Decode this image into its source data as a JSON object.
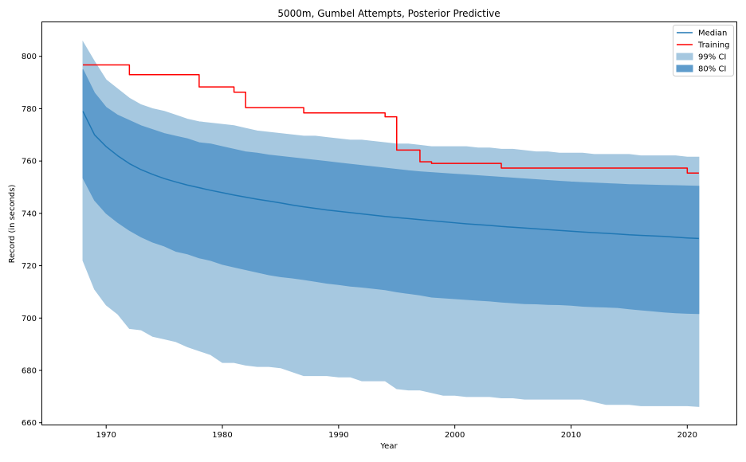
{
  "chart_data": {
    "type": "area",
    "title": "5000m, Gumbel Attempts, Posterior Predictive",
    "xlabel": "Year",
    "ylabel": "Record (in seconds)",
    "xlim": [
      1964.5,
      2024.3
    ],
    "ylim": [
      659,
      813
    ],
    "xticks": [
      1970,
      1980,
      1990,
      2000,
      2010,
      2020
    ],
    "yticks": [
      660,
      680,
      700,
      720,
      740,
      760,
      780,
      800
    ],
    "grid": false,
    "legend_position": "top-right",
    "legend": [
      {
        "label": "Median",
        "kind": "line",
        "color": "#1f77b4"
      },
      {
        "label": "Training",
        "kind": "line",
        "color": "#ff0000"
      },
      {
        "label": "99% CI",
        "kind": "patch",
        "color": "#a6c8e0"
      },
      {
        "label": "80% CI",
        "kind": "patch",
        "color": "#5f9ccc"
      }
    ],
    "x": [
      1968,
      1969,
      1970,
      1971,
      1972,
      1973,
      1974,
      1975,
      1976,
      1977,
      1978,
      1979,
      1980,
      1981,
      1982,
      1983,
      1984,
      1985,
      1986,
      1987,
      1988,
      1989,
      1990,
      1991,
      1992,
      1993,
      1994,
      1995,
      1996,
      1997,
      1998,
      1999,
      2000,
      2001,
      2002,
      2003,
      2004,
      2005,
      2006,
      2007,
      2008,
      2009,
      2010,
      2011,
      2012,
      2013,
      2014,
      2015,
      2016,
      2017,
      2018,
      2019,
      2020,
      2021
    ],
    "series": [
      {
        "name": "Median",
        "color": "#1f77b4",
        "values": [
          779,
          770,
          765.5,
          762,
          759,
          756.7,
          754.9,
          753.3,
          752,
          750.8,
          749.8,
          748.8,
          747.9,
          747,
          746.2,
          745.4,
          744.7,
          744,
          743.2,
          742.5,
          741.9,
          741.3,
          740.8,
          740.3,
          739.8,
          739.3,
          738.8,
          738.4,
          738,
          737.6,
          737.2,
          736.8,
          736.4,
          736,
          735.7,
          735.4,
          735,
          734.7,
          734.4,
          734.1,
          733.8,
          733.5,
          733.2,
          732.9,
          732.6,
          732.4,
          732.1,
          731.8,
          731.6,
          731.4,
          731.2,
          730.9,
          730.6,
          730.4
        ]
      },
      {
        "name": "Training",
        "color": "#ff0000",
        "step": "post",
        "values": [
          796.7,
          796.7,
          796.7,
          796.7,
          793,
          793,
          793,
          793,
          793,
          793,
          788.3,
          788.3,
          788.3,
          786.3,
          780.4,
          780.4,
          780.4,
          780.4,
          780.4,
          778.4,
          778.4,
          778.4,
          778.4,
          778.4,
          778.4,
          778.4,
          776.9,
          764.2,
          764.2,
          759.7,
          759.1,
          759.1,
          759.1,
          759.1,
          759.1,
          759.1,
          757.3,
          757.3,
          757.3,
          757.3,
          757.3,
          757.3,
          757.3,
          757.3,
          757.3,
          757.3,
          757.3,
          757.3,
          757.3,
          757.3,
          757.3,
          757.3,
          755.4,
          755.4
        ]
      }
    ],
    "bands": [
      {
        "name": "99% CI",
        "color": "#a6c8e0",
        "lower": [
          722,
          711,
          705,
          701.5,
          696,
          695.5,
          693,
          692,
          691,
          689,
          687.5,
          686,
          683,
          683,
          682,
          681.5,
          681.5,
          681,
          679.5,
          678,
          678,
          678,
          677.5,
          677.5,
          676,
          676,
          676,
          673,
          672.5,
          672.5,
          671.5,
          670.5,
          670.5,
          670,
          670,
          670,
          669.5,
          669.5,
          669,
          669,
          669,
          669,
          669,
          669,
          668,
          667,
          667,
          667,
          666.5,
          666.5,
          666.5,
          666.5,
          666.5,
          666.2
        ],
        "upper": [
          805.5,
          798,
          791,
          787.5,
          784,
          781.5,
          780,
          779,
          777.5,
          776,
          775,
          774.5,
          774,
          773.5,
          772.5,
          771.5,
          771,
          770.5,
          770,
          769.5,
          769.5,
          769,
          768.5,
          768,
          768,
          767.5,
          767,
          766.5,
          766.5,
          766,
          765.5,
          765.5,
          765.5,
          765.5,
          765,
          765,
          764.5,
          764.5,
          764,
          763.5,
          763.5,
          763,
          763,
          763,
          762.5,
          762.5,
          762.5,
          762.5,
          762,
          762,
          762,
          762,
          761.5,
          761.5
        ]
      },
      {
        "name": "80% CI",
        "color": "#5f9ccc",
        "lower": [
          753.5,
          745,
          740,
          736.5,
          733.5,
          731,
          729,
          727.5,
          725.5,
          724.5,
          723,
          722,
          720.5,
          719.5,
          718.5,
          717.5,
          716.5,
          715.8,
          715.3,
          714.7,
          714,
          713.3,
          712.8,
          712.2,
          711.8,
          711.3,
          710.8,
          710,
          709.4,
          708.8,
          708,
          707.7,
          707.4,
          707.1,
          706.8,
          706.5,
          706.1,
          705.8,
          705.5,
          705.4,
          705.2,
          705.1,
          704.9,
          704.5,
          704.3,
          704.2,
          704,
          703.5,
          703.1,
          702.7,
          702.3,
          702,
          701.8,
          701.7
        ],
        "upper": [
          795,
          786,
          780.5,
          777.5,
          775.5,
          773.5,
          772,
          770.5,
          769.5,
          768.5,
          767,
          766.5,
          765.5,
          764.5,
          763.5,
          763,
          762.3,
          761.8,
          761.3,
          760.8,
          760.3,
          759.8,
          759.3,
          758.8,
          758.3,
          757.8,
          757.3,
          756.8,
          756.3,
          755.9,
          755.6,
          755.3,
          755,
          754.7,
          754.4,
          754.1,
          753.8,
          753.5,
          753.2,
          752.9,
          752.6,
          752.3,
          752,
          751.8,
          751.6,
          751.4,
          751.2,
          751,
          750.9,
          750.8,
          750.7,
          750.6,
          750.5,
          750.4
        ]
      }
    ]
  }
}
